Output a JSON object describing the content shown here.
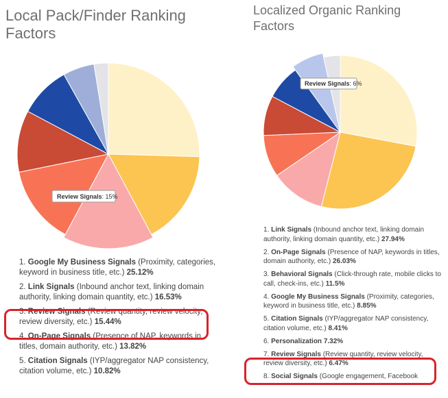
{
  "left": {
    "title": "Local Pack/Finder Ranking Factors",
    "tooltip": {
      "name": "Review Signals",
      "value": "15%"
    },
    "list": [
      {
        "num": "1.",
        "name": "Google My Business Signals",
        "desc": " (Proximity, categories, keyword in business title, etc.) ",
        "pct": "25.12%"
      },
      {
        "num": "2.",
        "name": "Link Signals",
        "desc": " (Inbound anchor text, linking domain authority, linking domain quantity, etc.) ",
        "pct": "16.53%"
      },
      {
        "num": "3.",
        "name": "Review Signals",
        "desc": " (Review quantity, review velocity, review diversity, etc.) ",
        "pct": "15.44%"
      },
      {
        "num": "4.",
        "name": "On-Page Signals",
        "desc": " (Presence of NAP, keywords in titles, domain authority, etc.) ",
        "pct": "13.82%"
      },
      {
        "num": "5.",
        "name": "Citation Signals",
        "desc": " (IYP/aggregator NAP consistency, citation volume, etc.) ",
        "pct": "10.82%"
      }
    ]
  },
  "right": {
    "title": "Localized Organic Ranking Factors",
    "tooltip": {
      "name": "Review Signals",
      "value": "6%"
    },
    "list": [
      {
        "num": "1.",
        "name": "Link Signals",
        "desc": " (Inbound anchor text, linking domain authority, linking domain quantity, etc.) ",
        "pct": "27.94%"
      },
      {
        "num": "2.",
        "name": "On-Page Signals",
        "desc": " (Presence of NAP, keywords in titles, domain authority, etc.) ",
        "pct": "26.03%"
      },
      {
        "num": "3.",
        "name": "Behavioral Signals",
        "desc": " (Click-through rate, mobile clicks to call, check-ins, etc.) ",
        "pct": "11.5%"
      },
      {
        "num": "4.",
        "name": "Google My Business Signals",
        "desc": " (Proximity, categories, keyword in business title, etc.) ",
        "pct": "8.85%"
      },
      {
        "num": "5.",
        "name": "Citation Signals",
        "desc": " (IYP/aggregator NAP consistency, citation volume, etc.) ",
        "pct": "8.41%"
      },
      {
        "num": "6.",
        "name": "Personalization",
        "desc": " ",
        "pct": "7.32%"
      },
      {
        "num": "7.",
        "name": "Review Signals",
        "desc": " (Review quantity, review velocity, review diversity, etc.) ",
        "pct": "6.47%"
      },
      {
        "num": "8.",
        "name": "Social Signals",
        "desc": " (Google engagement, Facebook",
        "pct": ""
      }
    ]
  },
  "chart_data": [
    {
      "type": "pie",
      "title": "Local Pack/Finder Ranking Factors",
      "categories": [
        "Google My Business Signals",
        "Link Signals",
        "Review Signals",
        "On-Page Signals",
        "Citation Signals",
        "Behavioral Signals",
        "Personalization",
        "Social Signals"
      ],
      "values": [
        25.12,
        16.53,
        15.44,
        13.82,
        10.82,
        9.0,
        5.5,
        2.5
      ],
      "colors": [
        "#fff1c7",
        "#fcc451",
        "#f9a9a9",
        "#f87356",
        "#c94a35",
        "#1e4aa5",
        "#9faed8",
        "#e3e3e8"
      ],
      "highlighted": "Review Signals",
      "legend": "none"
    },
    {
      "type": "pie",
      "title": "Localized Organic Ranking Factors",
      "categories": [
        "Link Signals",
        "On-Page Signals",
        "Behavioral Signals",
        "Google My Business Signals",
        "Citation Signals",
        "Personalization",
        "Review Signals",
        "Social Signals"
      ],
      "values": [
        27.94,
        26.03,
        11.5,
        8.85,
        8.41,
        7.32,
        6.47,
        3.48
      ],
      "colors": [
        "#fff1c7",
        "#fcc451",
        "#f9a9a9",
        "#f87356",
        "#c94a35",
        "#1e4aa5",
        "#b9c6ec",
        "#e3e3e8"
      ],
      "highlighted": "Review Signals",
      "legend": "none"
    }
  ]
}
